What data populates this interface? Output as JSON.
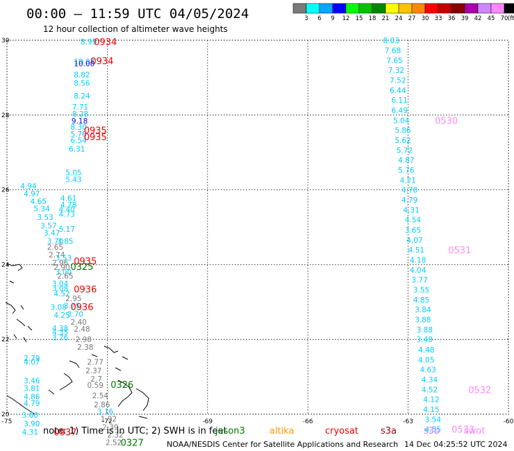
{
  "header": {
    "title": "00:00 — 11:59 UTC 04/05/2024",
    "subtitle": "12 hour collection of altimeter wave heights"
  },
  "colorbar": {
    "labels": [
      "3",
      "6",
      "9",
      "12",
      "15",
      "18",
      "21",
      "24",
      "27",
      "30",
      "33",
      "36",
      "39",
      "42",
      "45",
      "70"
    ],
    "unit": "(ft)",
    "colors": [
      "#7a7a7a",
      "#00ffff",
      "#00a8ff",
      "#0000ff",
      "#00ff00",
      "#00c400",
      "#008800",
      "#ffff00",
      "#ffc400",
      "#ff8800",
      "#ff0000",
      "#c40000",
      "#880000",
      "#aa00aa",
      "#cc88ff",
      "#ff88ff",
      "#000000"
    ]
  },
  "footer": {
    "note": "note:  1) Time is in UTC; 2) SWH is in feet",
    "missions": [
      {
        "name": "jason3",
        "color": "#007700"
      },
      {
        "name": "altika",
        "color": "#ff9900"
      },
      {
        "name": "cryosat",
        "color": "#ee0000"
      },
      {
        "name": "s3a",
        "color": "#990000"
      },
      {
        "name": "s3b",
        "color": "#bb88ff"
      },
      {
        "name": "swot",
        "color": "#ff88ff"
      }
    ],
    "credit": "NOAA/NESDIS Center for Satellite Applications and Research",
    "timestamp": "14 Dec 04:25:52 UTC 2024"
  },
  "chart_data": {
    "type": "scatter",
    "title": "00:00 — 11:59 UTC 04/05/2024",
    "xlim": [
      -75,
      -60
    ],
    "ylim": [
      20,
      30
    ],
    "x_ticks": [
      -75,
      -72,
      -69,
      -66,
      -63,
      -60
    ],
    "y_ticks": [
      20,
      22,
      24,
      26,
      28,
      30
    ],
    "grid": true,
    "unit": "ft",
    "points": [
      {
        "lon": -72.8,
        "lat": 29.96,
        "v": "8.99",
        "c": "#00ccff"
      },
      {
        "lon": -73.0,
        "lat": 29.43,
        "v": "10.07",
        "c": "#00ccff"
      },
      {
        "lon": -73.0,
        "lat": 29.38,
        "v": "10.00",
        "c": "#0000ff"
      },
      {
        "lon": -73.0,
        "lat": 29.08,
        "v": "8.82",
        "c": "#00ccff"
      },
      {
        "lon": -73.0,
        "lat": 28.86,
        "v": "8.56",
        "c": "#00ccff"
      },
      {
        "lon": -73.0,
        "lat": 28.52,
        "v": "8.24",
        "c": "#00ccff"
      },
      {
        "lon": -73.05,
        "lat": 28.22,
        "v": "7.71",
        "c": "#00ccff"
      },
      {
        "lon": -73.05,
        "lat": 28.03,
        "v": "8.28",
        "c": "#00ccff"
      },
      {
        "lon": -73.07,
        "lat": 27.85,
        "v": "9.18",
        "c": "#0000ff"
      },
      {
        "lon": -73.1,
        "lat": 27.68,
        "v": "8.30",
        "c": "#00ccff"
      },
      {
        "lon": -73.1,
        "lat": 27.5,
        "v": "5.76",
        "c": "#00ccff"
      },
      {
        "lon": -73.1,
        "lat": 27.33,
        "v": "6.54",
        "c": "#00ccff"
      },
      {
        "lon": -73.15,
        "lat": 27.1,
        "v": "6.31",
        "c": "#00ccff"
      },
      {
        "lon": -73.25,
        "lat": 26.47,
        "v": "5.05",
        "c": "#00ccff"
      },
      {
        "lon": -73.25,
        "lat": 26.28,
        "v": "5.43",
        "c": "#00ccff"
      },
      {
        "lon": -74.6,
        "lat": 26.1,
        "v": "4.94",
        "c": "#00ccff"
      },
      {
        "lon": -74.5,
        "lat": 25.9,
        "v": "4.97",
        "c": "#00ccff"
      },
      {
        "lon": -74.3,
        "lat": 25.7,
        "v": "4.65",
        "c": "#00ccff"
      },
      {
        "lon": -74.2,
        "lat": 25.5,
        "v": "5.34",
        "c": "#00ccff"
      },
      {
        "lon": -73.4,
        "lat": 25.78,
        "v": "4.61",
        "c": "#00ccff"
      },
      {
        "lon": -73.4,
        "lat": 25.6,
        "v": "4.78",
        "c": "#00ccff"
      },
      {
        "lon": -73.45,
        "lat": 25.48,
        "v": "4.40",
        "c": "#00ccff"
      },
      {
        "lon": -73.45,
        "lat": 25.35,
        "v": "4.73",
        "c": "#00ccff"
      },
      {
        "lon": -74.1,
        "lat": 25.27,
        "v": "3.53",
        "c": "#00ccff"
      },
      {
        "lon": -74.0,
        "lat": 25.05,
        "v": "3.57",
        "c": "#00ccff"
      },
      {
        "lon": -73.9,
        "lat": 24.85,
        "v": "3.47",
        "c": "#00ccff"
      },
      {
        "lon": -73.45,
        "lat": 24.95,
        "v": "5.17",
        "c": "#00ccff"
      },
      {
        "lon": -73.8,
        "lat": 24.63,
        "v": "3.70",
        "c": "#00ccff"
      },
      {
        "lon": -73.5,
        "lat": 24.63,
        "v": "3.85",
        "c": "#00ccff"
      },
      {
        "lon": -73.8,
        "lat": 24.47,
        "v": "2.65",
        "c": "#777777"
      },
      {
        "lon": -73.75,
        "lat": 24.27,
        "v": "2.74",
        "c": "#777777"
      },
      {
        "lon": -73.55,
        "lat": 24.18,
        "v": "3.53",
        "c": "#00ccff"
      },
      {
        "lon": -73.65,
        "lat": 24.05,
        "v": "2.96",
        "c": "#777777"
      },
      {
        "lon": -73.6,
        "lat": 23.93,
        "v": "2.90",
        "c": "#777777"
      },
      {
        "lon": -73.55,
        "lat": 23.8,
        "v": "3.00",
        "c": "#00ccff"
      },
      {
        "lon": -73.5,
        "lat": 23.7,
        "v": "2.65",
        "c": "#777777"
      },
      {
        "lon": -73.65,
        "lat": 23.5,
        "v": "3.04",
        "c": "#00ccff"
      },
      {
        "lon": -73.65,
        "lat": 23.37,
        "v": "3.08",
        "c": "#00ccff"
      },
      {
        "lon": -73.6,
        "lat": 23.23,
        "v": "4.52",
        "c": "#00ccff"
      },
      {
        "lon": -73.25,
        "lat": 23.1,
        "v": "2.95",
        "c": "#777777"
      },
      {
        "lon": -73.7,
        "lat": 22.87,
        "v": "3.08",
        "c": "#00ccff"
      },
      {
        "lon": -73.3,
        "lat": 22.9,
        "v": "3.75",
        "c": "#00ccff"
      },
      {
        "lon": -73.6,
        "lat": 22.65,
        "v": "4.25",
        "c": "#00ccff"
      },
      {
        "lon": -73.2,
        "lat": 22.68,
        "v": "3.70",
        "c": "#00ccff"
      },
      {
        "lon": -73.1,
        "lat": 22.47,
        "v": "2.40",
        "c": "#777777"
      },
      {
        "lon": -73.65,
        "lat": 22.3,
        "v": "4.38",
        "c": "#00ccff"
      },
      {
        "lon": -73.65,
        "lat": 22.2,
        "v": "4.35",
        "c": "#00ccff"
      },
      {
        "lon": -73.0,
        "lat": 22.28,
        "v": "2.48",
        "c": "#777777"
      },
      {
        "lon": -73.65,
        "lat": 22.05,
        "v": "3.76",
        "c": "#00ccff"
      },
      {
        "lon": -72.95,
        "lat": 22.0,
        "v": "2.98",
        "c": "#777777"
      },
      {
        "lon": -72.9,
        "lat": 21.8,
        "v": "2.38",
        "c": "#777777"
      },
      {
        "lon": -74.5,
        "lat": 21.5,
        "v": "2.79",
        "c": "#00ccff"
      },
      {
        "lon": -74.5,
        "lat": 21.4,
        "v": "4.07",
        "c": "#00ccff"
      },
      {
        "lon": -72.6,
        "lat": 21.4,
        "v": "2.77",
        "c": "#777777"
      },
      {
        "lon": -72.65,
        "lat": 21.17,
        "v": "2.37",
        "c": "#777777"
      },
      {
        "lon": -72.5,
        "lat": 20.95,
        "v": "2.7",
        "c": "#777777"
      },
      {
        "lon": -74.5,
        "lat": 20.9,
        "v": "3.46",
        "c": "#00ccff"
      },
      {
        "lon": -72.6,
        "lat": 20.78,
        "v": "0.59",
        "c": "#777777"
      },
      {
        "lon": -74.5,
        "lat": 20.7,
        "v": "3.81",
        "c": "#00ccff"
      },
      {
        "lon": -74.5,
        "lat": 20.47,
        "v": "4.86",
        "c": "#00ccff"
      },
      {
        "lon": -72.45,
        "lat": 20.5,
        "v": "2.54",
        "c": "#777777"
      },
      {
        "lon": -74.5,
        "lat": 20.3,
        "v": "4.79",
        "c": "#00ccff"
      },
      {
        "lon": -72.4,
        "lat": 20.26,
        "v": "2.86",
        "c": "#777777"
      },
      {
        "lon": -72.3,
        "lat": 20.07,
        "v": "3.16",
        "c": "#00ccff"
      },
      {
        "lon": -74.55,
        "lat": 19.98,
        "v": "3.60",
        "c": "#00ccff"
      },
      {
        "lon": -72.2,
        "lat": 19.88,
        "v": "1.92",
        "c": "#777777"
      },
      {
        "lon": -74.5,
        "lat": 19.75,
        "v": "3.90",
        "c": "#00ccff"
      },
      {
        "lon": -72.15,
        "lat": 19.66,
        "v": "2.39",
        "c": "#777777"
      },
      {
        "lon": -74.55,
        "lat": 19.53,
        "v": "4.31",
        "c": "#00ccff"
      },
      {
        "lon": -72.0,
        "lat": 19.45,
        "v": "2.32",
        "c": "#777777"
      },
      {
        "lon": -72.05,
        "lat": 19.25,
        "v": "2.52",
        "c": "#777777"
      },
      {
        "lon": -63.75,
        "lat": 30.0,
        "v": "8.03",
        "c": "#00ccff"
      },
      {
        "lon": -63.7,
        "lat": 29.73,
        "v": "7.68",
        "c": "#00ccff"
      },
      {
        "lon": -63.65,
        "lat": 29.46,
        "v": "7.65",
        "c": "#00ccff"
      },
      {
        "lon": -63.6,
        "lat": 29.2,
        "v": "7.32",
        "c": "#00ccff"
      },
      {
        "lon": -63.55,
        "lat": 28.93,
        "v": "7.52",
        "c": "#00ccff"
      },
      {
        "lon": -63.55,
        "lat": 28.66,
        "v": "6.44",
        "c": "#00ccff"
      },
      {
        "lon": -63.5,
        "lat": 28.4,
        "v": "6.11",
        "c": "#00ccff"
      },
      {
        "lon": -63.5,
        "lat": 28.13,
        "v": "6.49",
        "c": "#00ccff"
      },
      {
        "lon": -63.45,
        "lat": 27.86,
        "v": "5.04",
        "c": "#00ccff"
      },
      {
        "lon": -63.4,
        "lat": 27.6,
        "v": "5.86",
        "c": "#00ccff"
      },
      {
        "lon": -63.4,
        "lat": 27.33,
        "v": "5.62",
        "c": "#00ccff"
      },
      {
        "lon": -63.35,
        "lat": 27.06,
        "v": "5.72",
        "c": "#00ccff"
      },
      {
        "lon": -63.3,
        "lat": 26.8,
        "v": "4.87",
        "c": "#00ccff"
      },
      {
        "lon": -63.3,
        "lat": 26.53,
        "v": "5.76",
        "c": "#00ccff"
      },
      {
        "lon": -63.25,
        "lat": 26.26,
        "v": "4.21",
        "c": "#00ccff"
      },
      {
        "lon": -63.2,
        "lat": 26.0,
        "v": "4.78",
        "c": "#00ccff"
      },
      {
        "lon": -63.2,
        "lat": 25.73,
        "v": "4.79",
        "c": "#00ccff"
      },
      {
        "lon": -63.15,
        "lat": 25.46,
        "v": "4.31",
        "c": "#00ccff"
      },
      {
        "lon": -63.1,
        "lat": 25.2,
        "v": "4.54",
        "c": "#00ccff"
      },
      {
        "lon": -63.1,
        "lat": 24.93,
        "v": "3.65",
        "c": "#00ccff"
      },
      {
        "lon": -63.05,
        "lat": 24.66,
        "v": "4.07",
        "c": "#00ccff"
      },
      {
        "lon": -63.0,
        "lat": 24.4,
        "v": "4.51",
        "c": "#00ccff"
      },
      {
        "lon": -62.95,
        "lat": 24.13,
        "v": "4.18",
        "c": "#00ccff"
      },
      {
        "lon": -62.95,
        "lat": 23.86,
        "v": "4.04",
        "c": "#00ccff"
      },
      {
        "lon": -62.9,
        "lat": 23.6,
        "v": "3.77",
        "c": "#00ccff"
      },
      {
        "lon": -62.85,
        "lat": 23.33,
        "v": "3.55",
        "c": "#00ccff"
      },
      {
        "lon": -62.85,
        "lat": 23.06,
        "v": "4.85",
        "c": "#00ccff"
      },
      {
        "lon": -62.8,
        "lat": 22.8,
        "v": "3.84",
        "c": "#00ccff"
      },
      {
        "lon": -62.8,
        "lat": 22.53,
        "v": "3.88",
        "c": "#00ccff"
      },
      {
        "lon": -62.75,
        "lat": 22.26,
        "v": "3.88",
        "c": "#00ccff"
      },
      {
        "lon": -62.75,
        "lat": 22.0,
        "v": "3.48",
        "c": "#00ccff"
      },
      {
        "lon": -62.7,
        "lat": 21.73,
        "v": "4.48",
        "c": "#00ccff"
      },
      {
        "lon": -62.7,
        "lat": 21.46,
        "v": "4.05",
        "c": "#00ccff"
      },
      {
        "lon": -62.65,
        "lat": 21.2,
        "v": "4.63",
        "c": "#00ccff"
      },
      {
        "lon": -62.6,
        "lat": 20.93,
        "v": "4.34",
        "c": "#00ccff"
      },
      {
        "lon": -62.6,
        "lat": 20.66,
        "v": "4.52",
        "c": "#00ccff"
      },
      {
        "lon": -62.55,
        "lat": 20.4,
        "v": "4.12",
        "c": "#00ccff"
      },
      {
        "lon": -62.55,
        "lat": 20.13,
        "v": "4.15",
        "c": "#00ccff"
      },
      {
        "lon": -62.5,
        "lat": 19.86,
        "v": "3.54",
        "c": "#00ccff"
      },
      {
        "lon": -62.5,
        "lat": 19.6,
        "v": "4.55",
        "c": "#00ccff"
      }
    ],
    "time_labels": [
      {
        "lon": -72.4,
        "lat": 29.96,
        "t": "0934",
        "c": "#ee0000"
      },
      {
        "lon": -72.5,
        "lat": 29.45,
        "t": "0934",
        "c": "#ee0000"
      },
      {
        "lon": -72.7,
        "lat": 27.6,
        "t": "0935",
        "c": "#ee0000"
      },
      {
        "lon": -72.7,
        "lat": 27.42,
        "t": "0935",
        "c": "#ee0000"
      },
      {
        "lon": -73.0,
        "lat": 24.1,
        "t": "0935",
        "c": "#ee0000"
      },
      {
        "lon": -73.1,
        "lat": 23.95,
        "t": "0325",
        "c": "#007700"
      },
      {
        "lon": -73.0,
        "lat": 23.35,
        "t": "0936",
        "c": "#ee0000"
      },
      {
        "lon": -73.1,
        "lat": 22.88,
        "t": "0936",
        "c": "#ee0000"
      },
      {
        "lon": -71.9,
        "lat": 20.8,
        "t": "0326",
        "c": "#007700"
      },
      {
        "lon": -73.6,
        "lat": 19.53,
        "t": "0937",
        "c": "#ee0000"
      },
      {
        "lon": -71.6,
        "lat": 19.25,
        "t": "0327",
        "c": "#007700"
      },
      {
        "lon": -62.2,
        "lat": 27.86,
        "t": "0530",
        "c": "#ff88ff"
      },
      {
        "lon": -61.8,
        "lat": 24.4,
        "t": "0531",
        "c": "#ff88ff"
      },
      {
        "lon": -61.2,
        "lat": 20.66,
        "t": "0532",
        "c": "#ff88ff"
      },
      {
        "lon": -61.7,
        "lat": 19.6,
        "t": "0533",
        "c": "#ff88ff"
      }
    ]
  }
}
